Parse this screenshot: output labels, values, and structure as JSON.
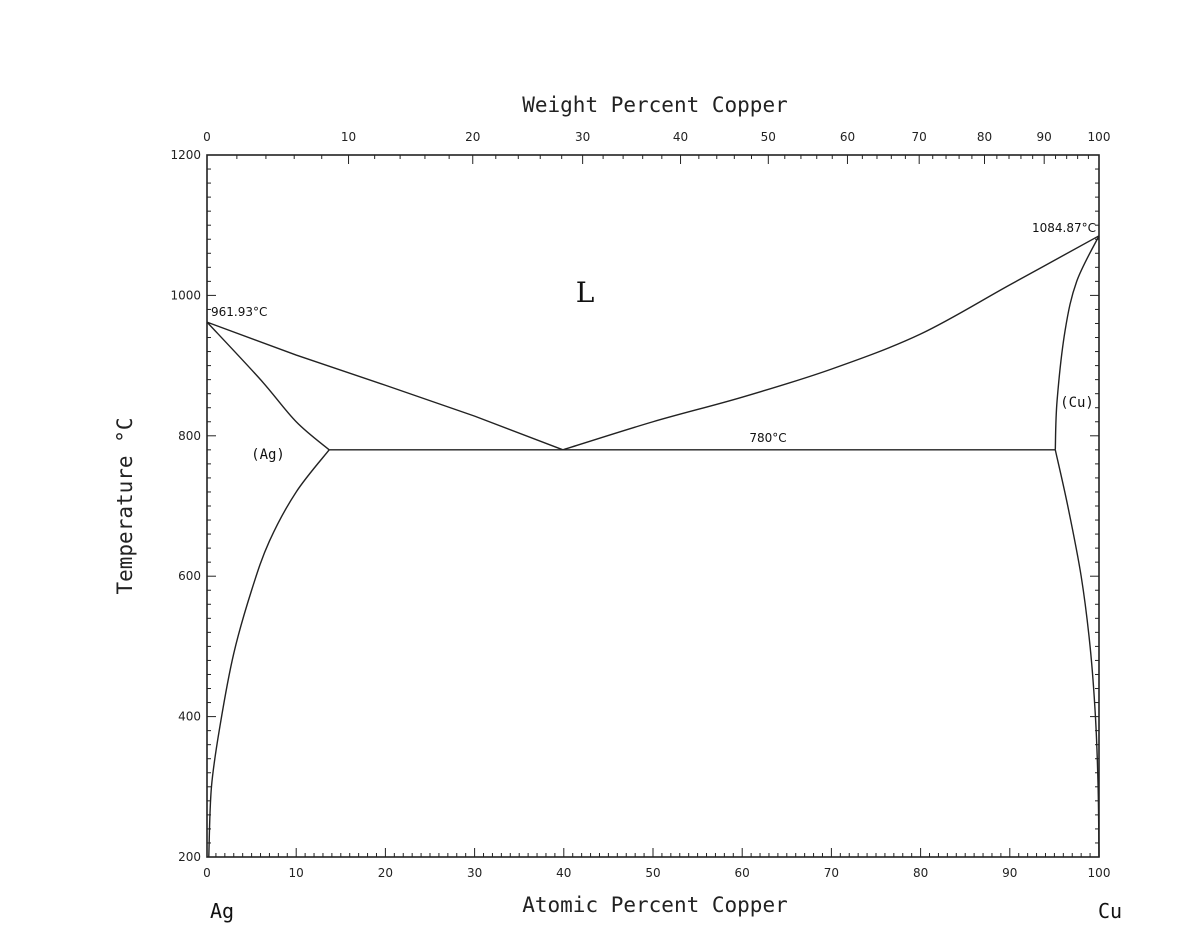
{
  "chart_data": {
    "type": "line",
    "title": "",
    "top_axis_label": "Weight Percent Copper",
    "xlabel": "Atomic Percent Copper",
    "ylabel": "Temperature °C",
    "xlim": [
      0,
      100
    ],
    "ylim": [
      200,
      1200
    ],
    "x_ticks": [
      0,
      10,
      20,
      30,
      40,
      50,
      60,
      70,
      80,
      90,
      100
    ],
    "y_ticks": [
      200,
      400,
      600,
      800,
      1000,
      1200
    ],
    "top_ticks": [
      0,
      10,
      20,
      30,
      40,
      50,
      60,
      70,
      80,
      90,
      100
    ],
    "left_element": "Ag",
    "right_element": "Cu",
    "annotations": {
      "ag_melting": "961.93°C",
      "cu_melting": "1084.87°C",
      "eutectic": "780°C",
      "liquid": "L",
      "ag_phase": "(Ag)",
      "cu_phase": "(Cu)"
    },
    "series": [
      {
        "key": "liquidus_left",
        "points": [
          [
            0,
            961.93
          ],
          [
            10,
            915
          ],
          [
            20,
            872
          ],
          [
            30,
            828
          ],
          [
            39.9,
            780
          ]
        ]
      },
      {
        "key": "liquidus_right",
        "points": [
          [
            39.9,
            780
          ],
          [
            50,
            820
          ],
          [
            60,
            855
          ],
          [
            70,
            895
          ],
          [
            80,
            945
          ],
          [
            90,
            1015
          ],
          [
            100,
            1084.87
          ]
        ]
      },
      {
        "key": "solidus_ag",
        "points": [
          [
            0,
            961.93
          ],
          [
            6,
            880
          ],
          [
            10,
            820
          ],
          [
            13.7,
            780
          ]
        ]
      },
      {
        "key": "solvus_ag",
        "points": [
          [
            13.7,
            780
          ],
          [
            10,
            720
          ],
          [
            7,
            650
          ],
          [
            5,
            580
          ],
          [
            3,
            490
          ],
          [
            1.5,
            390
          ],
          [
            0.5,
            300
          ],
          [
            0.2,
            200
          ]
        ]
      },
      {
        "key": "eutectic_line",
        "points": [
          [
            13.7,
            780
          ],
          [
            95.1,
            780
          ]
        ]
      },
      {
        "key": "solidus_cu",
        "points": [
          [
            95.1,
            780
          ],
          [
            95.3,
            850
          ],
          [
            96.2,
            950
          ],
          [
            97.5,
            1020
          ],
          [
            100,
            1084.87
          ]
        ]
      },
      {
        "key": "solvus_cu",
        "points": [
          [
            95.1,
            780
          ],
          [
            96.5,
            700
          ],
          [
            98,
            600
          ],
          [
            99,
            500
          ],
          [
            99.6,
            400
          ],
          [
            99.9,
            300
          ],
          [
            100,
            200
          ]
        ]
      }
    ]
  }
}
